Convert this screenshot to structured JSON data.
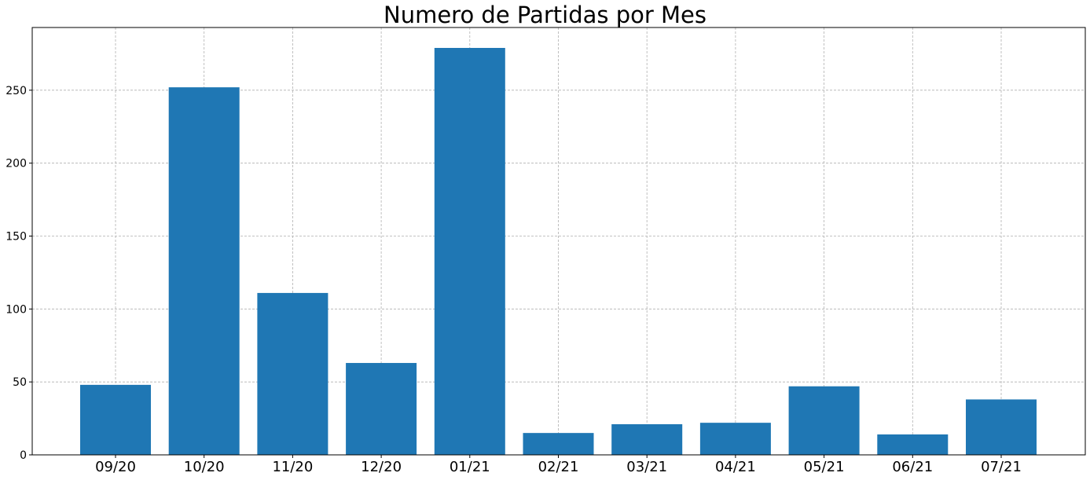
{
  "chart_data": {
    "type": "bar",
    "title": "Numero de Partidas por Mes",
    "xlabel": "",
    "ylabel": "",
    "categories": [
      "09/20",
      "10/20",
      "11/20",
      "12/20",
      "01/21",
      "02/21",
      "03/21",
      "04/21",
      "05/21",
      "06/21",
      "07/21"
    ],
    "values": [
      48,
      252,
      111,
      63,
      279,
      15,
      21,
      22,
      47,
      14,
      38
    ],
    "ylim": [
      0,
      293
    ],
    "yticks": [
      0,
      50,
      100,
      150,
      200,
      250
    ],
    "grid": true,
    "bar_color": "#1f77b4",
    "grid_color": "#b0b0b0"
  }
}
